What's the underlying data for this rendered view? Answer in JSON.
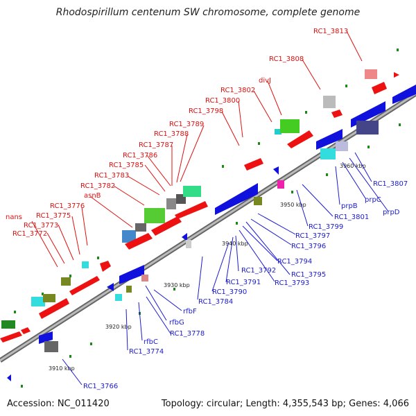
{
  "title": "Rhodospirillum centenum SW chromosome, complete genome",
  "footer": {
    "accession": "Accession: NC_011420",
    "topology": "Topology: circular; Length: 4,355,543 bp; Genes: 4,066"
  },
  "ticks": [
    "3910 kbp",
    "3920 kbp",
    "3930 kbp",
    "3940 kbp",
    "3950 kbp",
    "3960 kbp"
  ],
  "labels_top": [
    "nans",
    "RC1_3772",
    "RC1_3773",
    "RC1_3775",
    "RC1_3776",
    "asnB",
    "RC1_3782",
    "RC1_3783",
    "RC1_3785",
    "RC1_3786",
    "RC1_3787",
    "RC1_3788",
    "RC1_3789",
    "RC1_3798",
    "RC1_3800",
    "RC1_3802",
    "divJ",
    "RC1_3808",
    "RC1_3813"
  ],
  "labels_bottom": [
    "RC1_3766",
    "RC1_3774",
    "rfbC",
    "RC1_3778",
    "rfbG",
    "rfbF",
    "RC1_3784",
    "RC1_3790",
    "RC1_3791",
    "RC1_3792",
    "RC1_3793",
    "RC1_3794",
    "RC1_3795",
    "RC1_3796",
    "RC1_3797",
    "RC1_3799",
    "RC1_3801",
    "prpB",
    "prpC",
    "prpD",
    "RC1_3807"
  ],
  "colors": {
    "backbone": "#8a8a8a",
    "forward_gene": "#ee1111",
    "reverse_gene": "#1111dd",
    "rna": "#33e0e0",
    "green": "#22aa22",
    "olive": "#778822",
    "gray": "#777777",
    "label_red": "#e01010",
    "label_blue": "#1a1ad0"
  }
}
